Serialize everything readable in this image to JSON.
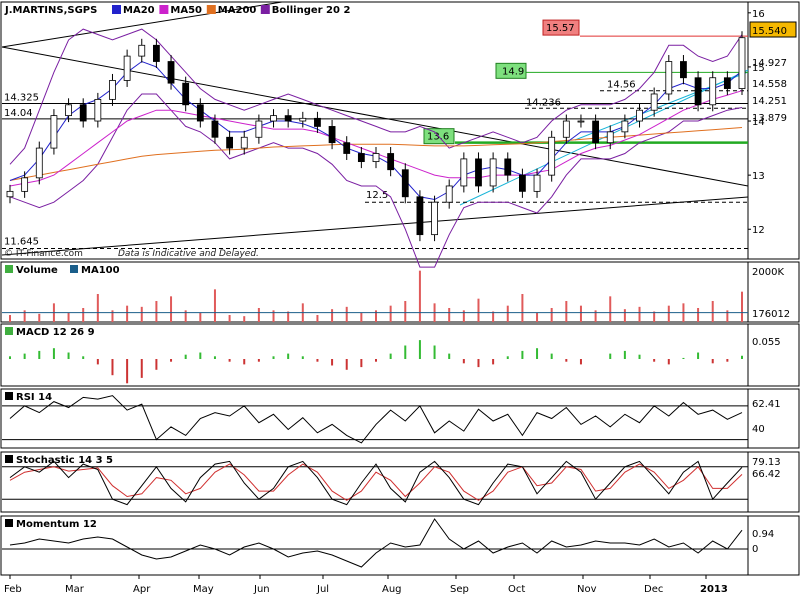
{
  "chart_data": {
    "type": "line",
    "symbol": "J.MARTINS,SGPS",
    "legend": [
      {
        "name": "MA20",
        "color": "#2222cc"
      },
      {
        "name": "MA50",
        "color": "#cc22cc"
      },
      {
        "name": "MA200",
        "color": "#e07020"
      },
      {
        "name": "Bollinger 20 2",
        "color": "#7a1fa2"
      }
    ],
    "credit": "© IT-Finance.com",
    "disclaimer": "Data is Indicative and Delayed.",
    "months": [
      "Feb",
      "Mar",
      "Apr",
      "May",
      "Jun",
      "Jul",
      "Aug",
      "Sep",
      "Oct",
      "Nov",
      "Dec",
      "2013"
    ],
    "price": {
      "ylim": [
        11.45,
        16.2
      ],
      "yticks": [
        12,
        13,
        14,
        15,
        16
      ],
      "horizontal_levels": [
        {
          "label": "15.57",
          "value": 15.57,
          "color": "#e03030",
          "style": "box-red"
        },
        {
          "label": "14.9",
          "value": 14.9,
          "color": "#22aa22",
          "style": "box-green"
        },
        {
          "label": "14.56",
          "value": 14.56,
          "color": "#000000",
          "style": "dashed"
        },
        {
          "label": "14.325",
          "value": 14.325,
          "color": "#000000",
          "style": "solid"
        },
        {
          "label": "14.236",
          "value": 14.236,
          "color": "#000000",
          "style": "dashed"
        },
        {
          "label": "14.04",
          "value": 14.04,
          "color": "#000000",
          "style": "solid"
        },
        {
          "label": "13.6",
          "value": 13.6,
          "color": "#22aa22",
          "style": "box-green-thick"
        },
        {
          "label": "12.5",
          "value": 12.5,
          "color": "#000000",
          "style": "dashed"
        },
        {
          "label": "11.645",
          "value": 11.645,
          "color": "#000000",
          "style": "dashed"
        }
      ],
      "right_labels": [
        {
          "value": "15.540",
          "bg": "#f5b800",
          "border": "#000000"
        },
        {
          "value": "14.927",
          "color": "#2222cc"
        },
        {
          "value": "14.558",
          "color": "#cc22cc"
        },
        {
          "value": "14.251",
          "color": "#7a1fa2"
        },
        {
          "value": "13.879",
          "color": "#e07020"
        }
      ],
      "close": [
        12.7,
        12.95,
        13.5,
        14.1,
        14.3,
        14.0,
        14.4,
        14.75,
        15.2,
        15.4,
        15.1,
        14.7,
        14.3,
        14.0,
        13.7,
        13.5,
        13.7,
        14.0,
        14.1,
        14.0,
        14.05,
        13.9,
        13.6,
        13.4,
        13.25,
        13.4,
        13.1,
        12.6,
        11.9,
        12.5,
        12.8,
        13.3,
        12.8,
        13.3,
        13.0,
        12.7,
        13.0,
        13.7,
        14.0,
        14.0,
        13.6,
        13.8,
        14.0,
        14.2,
        14.5,
        15.1,
        14.8,
        14.3,
        14.8,
        14.6,
        15.54
      ],
      "ma20": [
        12.9,
        13.0,
        13.3,
        13.7,
        14.1,
        14.3,
        14.4,
        14.6,
        14.9,
        15.1,
        15.0,
        14.7,
        14.4,
        14.2,
        14.0,
        13.8,
        13.8,
        13.9,
        14.0,
        14.0,
        13.95,
        13.85,
        13.7,
        13.5,
        13.4,
        13.35,
        13.2,
        12.9,
        12.6,
        12.55,
        12.7,
        13.0,
        13.1,
        13.15,
        13.1,
        13.0,
        13.0,
        13.3,
        13.6,
        13.8,
        13.8,
        13.8,
        13.9,
        14.1,
        14.3,
        14.6,
        14.7,
        14.6,
        14.6,
        14.7,
        14.93
      ],
      "ma50": [
        12.8,
        12.85,
        12.9,
        13.0,
        13.2,
        13.4,
        13.6,
        13.8,
        14.0,
        14.1,
        14.2,
        14.2,
        14.15,
        14.1,
        14.05,
        14.0,
        13.95,
        13.9,
        13.85,
        13.85,
        13.85,
        13.8,
        13.7,
        13.6,
        13.5,
        13.4,
        13.3,
        13.2,
        13.1,
        13.0,
        12.95,
        12.95,
        12.95,
        13.0,
        13.0,
        13.0,
        13.05,
        13.1,
        13.25,
        13.4,
        13.5,
        13.55,
        13.65,
        13.75,
        13.9,
        14.05,
        14.2,
        14.3,
        14.4,
        14.48,
        14.56
      ],
      "ma200": [
        12.9,
        12.95,
        13.0,
        13.05,
        13.1,
        13.15,
        13.2,
        13.25,
        13.3,
        13.35,
        13.38,
        13.4,
        13.42,
        13.44,
        13.46,
        13.47,
        13.48,
        13.5,
        13.52,
        13.53,
        13.54,
        13.55,
        13.56,
        13.57,
        13.57,
        13.57,
        13.57,
        13.56,
        13.55,
        13.54,
        13.54,
        13.54,
        13.55,
        13.56,
        13.57,
        13.58,
        13.6,
        13.62,
        13.64,
        13.66,
        13.68,
        13.7,
        13.72,
        13.74,
        13.76,
        13.78,
        13.8,
        13.82,
        13.84,
        13.86,
        13.88
      ],
      "boll_upper": [
        13.2,
        13.5,
        14.2,
        14.9,
        15.5,
        15.7,
        15.6,
        15.5,
        15.6,
        15.7,
        15.5,
        15.2,
        14.9,
        14.6,
        14.4,
        14.3,
        14.2,
        14.3,
        14.4,
        14.5,
        14.4,
        14.3,
        14.2,
        14.1,
        14.0,
        13.9,
        13.8,
        13.8,
        13.9,
        13.8,
        13.5,
        13.6,
        13.7,
        13.8,
        13.7,
        13.6,
        13.7,
        14.0,
        14.2,
        14.3,
        14.3,
        14.3,
        14.4,
        14.6,
        14.9,
        15.4,
        15.4,
        15.2,
        15.1,
        15.2,
        15.6
      ],
      "boll_lower": [
        12.6,
        12.5,
        12.4,
        12.5,
        12.7,
        12.9,
        13.2,
        13.7,
        14.2,
        14.5,
        14.5,
        14.2,
        13.9,
        13.8,
        13.6,
        13.3,
        13.4,
        13.5,
        13.6,
        13.5,
        13.5,
        13.4,
        13.2,
        12.9,
        12.8,
        12.8,
        12.6,
        12.0,
        11.3,
        11.3,
        11.9,
        12.4,
        12.5,
        12.5,
        12.5,
        12.4,
        12.3,
        12.6,
        13.0,
        13.3,
        13.3,
        13.3,
        13.4,
        13.6,
        13.7,
        13.8,
        14.0,
        14.0,
        14.1,
        14.2,
        14.25
      ]
    },
    "volume": {
      "title": "Volume",
      "overlay": "MA100",
      "ytick_label": "2000K",
      "last": "176012",
      "values": [
        300,
        500,
        350,
        800,
        400,
        600,
        1200,
        500,
        700,
        650,
        900,
        1100,
        500,
        400,
        1400,
        300,
        250,
        600,
        500,
        450,
        800,
        300,
        550,
        650,
        400,
        500,
        700,
        900,
        2200,
        800,
        600,
        500,
        1000,
        450,
        700,
        1200,
        400,
        600,
        900,
        700,
        500,
        1100,
        550,
        650,
        450,
        700,
        800,
        600,
        900,
        500,
        1300
      ],
      "ma100": 400
    },
    "macd": {
      "title": "MACD 12 26 9",
      "last": "0.055",
      "values": [
        0.05,
        0.1,
        0.15,
        0.2,
        0.12,
        0.05,
        -0.1,
        -0.3,
        -0.45,
        -0.35,
        -0.2,
        -0.05,
        0.08,
        0.12,
        0.05,
        -0.05,
        -0.1,
        -0.05,
        0.05,
        0.1,
        0.05,
        -0.05,
        -0.12,
        -0.2,
        -0.15,
        -0.05,
        0.1,
        0.25,
        0.35,
        0.25,
        0.1,
        -0.08,
        -0.15,
        -0.1,
        0.05,
        0.15,
        0.2,
        0.1,
        -0.05,
        -0.1,
        0.0,
        0.1,
        0.15,
        0.08,
        -0.05,
        -0.1,
        0.02,
        0.12,
        -0.08,
        -0.05,
        0.06
      ]
    },
    "rsi": {
      "title": "RSI 14",
      "ytick": "40",
      "last": "62.41",
      "values": [
        55,
        70,
        62,
        75,
        68,
        80,
        78,
        82,
        65,
        72,
        30,
        45,
        35,
        55,
        62,
        58,
        70,
        50,
        60,
        42,
        56,
        38,
        48,
        35,
        26,
        48,
        65,
        52,
        70,
        38,
        52,
        40,
        66,
        52,
        60,
        35,
        62,
        55,
        68,
        48,
        58,
        45,
        60,
        50,
        70,
        58,
        74,
        60,
        65,
        54,
        62
      ]
    },
    "stochastic": {
      "title": "Stochastic 14 3 5",
      "last_k": "79.13",
      "last_d": "66.42",
      "k": [
        60,
        80,
        70,
        90,
        60,
        85,
        75,
        20,
        10,
        45,
        80,
        40,
        15,
        60,
        85,
        90,
        50,
        20,
        40,
        80,
        90,
        60,
        20,
        10,
        50,
        85,
        40,
        15,
        70,
        90,
        60,
        20,
        10,
        50,
        85,
        80,
        30,
        60,
        90,
        70,
        20,
        50,
        80,
        90,
        60,
        30,
        70,
        90,
        20,
        50,
        79
      ],
      "d": [
        55,
        70,
        75,
        80,
        72,
        75,
        78,
        45,
        25,
        30,
        60,
        55,
        30,
        40,
        70,
        85,
        65,
        35,
        35,
        65,
        85,
        70,
        35,
        18,
        35,
        70,
        55,
        25,
        50,
        80,
        70,
        35,
        18,
        35,
        70,
        80,
        45,
        50,
        80,
        75,
        35,
        40,
        70,
        85,
        70,
        40,
        55,
        80,
        40,
        40,
        66
      ]
    },
    "momentum": {
      "title": "Momentum 12",
      "zero_label": "0",
      "last": "0.94",
      "values": [
        0.2,
        0.3,
        0.5,
        0.4,
        0.3,
        0.5,
        0.6,
        0.5,
        0.1,
        -0.3,
        -0.5,
        -0.4,
        -0.1,
        0.2,
        0.0,
        -0.3,
        0.1,
        0.3,
        0.0,
        -0.4,
        -0.2,
        -0.1,
        -0.3,
        -0.6,
        -0.9,
        -0.2,
        0.3,
        0.1,
        0.2,
        1.5,
        0.5,
        0.0,
        0.4,
        -0.2,
        0.1,
        0.3,
        -0.2,
        0.4,
        0.1,
        0.2,
        0.4,
        0.3,
        0.3,
        0.2,
        0.5,
        0.1,
        0.3,
        -0.2,
        0.4,
        0.0,
        0.94
      ]
    }
  }
}
